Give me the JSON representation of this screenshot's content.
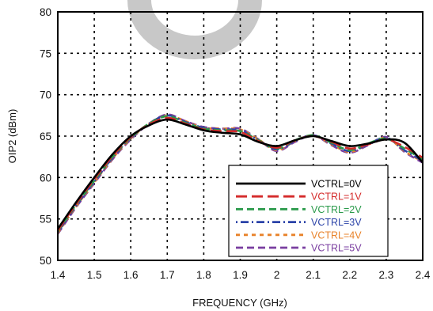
{
  "chart_data": {
    "type": "line",
    "xlabel": "FREQUENCY (GHz)",
    "ylabel": "OIP2 (dBm)",
    "xlim": [
      1.4,
      2.4
    ],
    "ylim": [
      50,
      80
    ],
    "xticks": [
      "1.4",
      "1.5",
      "1.6",
      "1.7",
      "1.8",
      "1.9",
      "2",
      "2.1",
      "2.2",
      "2.3",
      "2.4"
    ],
    "yticks": [
      "50",
      "55",
      "60",
      "65",
      "70",
      "75",
      "80"
    ],
    "grid": true,
    "grid_style": "dotted",
    "legend_position": "bottom-right",
    "x": [
      1.4,
      1.45,
      1.5,
      1.55,
      1.6,
      1.65,
      1.7,
      1.75,
      1.8,
      1.85,
      1.9,
      1.95,
      2.0,
      2.05,
      2.1,
      2.15,
      2.2,
      2.25,
      2.3,
      2.35,
      2.4
    ],
    "series": [
      {
        "name": "VCTRL=0V",
        "color": "#000000",
        "dash": "solid",
        "values": [
          53.8,
          57.0,
          60.0,
          62.8,
          65.0,
          66.3,
          67.0,
          66.4,
          65.7,
          65.4,
          65.2,
          64.3,
          63.8,
          64.5,
          65.0,
          64.4,
          63.8,
          64.1,
          64.6,
          64.2,
          61.8
        ]
      },
      {
        "name": "VCTRL=1V",
        "color": "#d42a2a",
        "dash": "long-dash",
        "values": [
          53.6,
          56.8,
          59.8,
          62.6,
          64.9,
          66.4,
          67.2,
          66.5,
          65.8,
          65.6,
          65.5,
          64.4,
          63.6,
          64.5,
          65.0,
          64.3,
          63.5,
          64.0,
          64.6,
          63.7,
          62.4
        ]
      },
      {
        "name": "VCTRL=2V",
        "color": "#2a9a4a",
        "dash": "dash",
        "values": [
          53.5,
          56.7,
          59.6,
          62.5,
          64.8,
          66.5,
          67.4,
          66.6,
          65.9,
          65.7,
          65.6,
          64.5,
          63.5,
          64.5,
          65.1,
          64.2,
          63.3,
          64.1,
          64.7,
          63.5,
          62.2
        ]
      },
      {
        "name": "VCTRL=3V",
        "color": "#2b43a8",
        "dash": "dot-dash",
        "values": [
          53.4,
          56.6,
          59.5,
          62.4,
          64.8,
          66.5,
          67.5,
          66.7,
          66.0,
          65.8,
          65.7,
          64.5,
          63.4,
          64.4,
          65.1,
          64.1,
          63.2,
          64.0,
          64.8,
          63.3,
          62.0
        ]
      },
      {
        "name": "VCTRL=4V",
        "color": "#e8822a",
        "dash": "short-dash",
        "values": [
          53.3,
          56.5,
          59.4,
          62.3,
          64.7,
          66.5,
          67.5,
          66.8,
          66.0,
          65.9,
          65.8,
          64.6,
          63.3,
          64.4,
          65.1,
          64.0,
          63.1,
          64.0,
          64.8,
          63.2,
          61.9
        ]
      },
      {
        "name": "VCTRL=5V",
        "color": "#7a3ea0",
        "dash": "dash",
        "values": [
          53.2,
          56.4,
          59.3,
          62.2,
          64.6,
          66.5,
          67.6,
          66.8,
          66.1,
          65.9,
          65.9,
          64.6,
          63.2,
          64.3,
          65.1,
          63.9,
          63.0,
          63.9,
          64.9,
          63.1,
          61.8
        ]
      }
    ]
  }
}
